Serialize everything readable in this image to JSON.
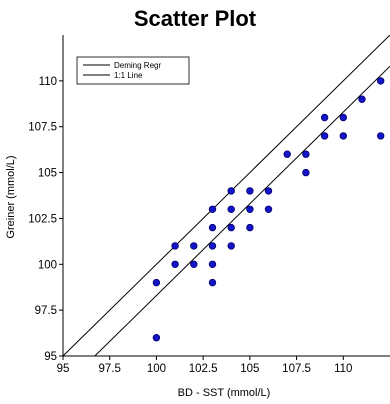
{
  "chart_data": {
    "type": "scatter",
    "title": "Scatter Plot",
    "xlabel": "BD - SST (mmol/L)",
    "ylabel": "Greiner (mmol/L)",
    "xlim": [
      95,
      112.5
    ],
    "ylim": [
      95,
      112.5
    ],
    "xticks": [
      "95",
      "97.5",
      "100",
      "102.5",
      "105",
      "107.5",
      "110"
    ],
    "yticks": [
      "95",
      "97.5",
      "100",
      "102.5",
      "105",
      "107.5",
      "110"
    ],
    "xtick_values": [
      95,
      97.5,
      100,
      102.5,
      105,
      107.5,
      110
    ],
    "ytick_values": [
      95,
      97.5,
      100,
      102.5,
      105,
      107.5,
      110
    ],
    "grid": false,
    "legend_position": "top-left",
    "legend": [
      {
        "label": "Deming Regr",
        "style": "line"
      },
      {
        "label": "1:1 Line",
        "style": "line"
      }
    ],
    "marker_color": "#1414c8",
    "marker_edge_color": "#00006e",
    "series": [
      {
        "points": [
          [
            100,
            96
          ],
          [
            100,
            99
          ],
          [
            101,
            100
          ],
          [
            101,
            101
          ],
          [
            102,
            100
          ],
          [
            102,
            101
          ],
          [
            103,
            99
          ],
          [
            103,
            100
          ],
          [
            103,
            101
          ],
          [
            103,
            102
          ],
          [
            103,
            103
          ],
          [
            104,
            101
          ],
          [
            104,
            102
          ],
          [
            104,
            103
          ],
          [
            104,
            104
          ],
          [
            105,
            102
          ],
          [
            105,
            103
          ],
          [
            105,
            104
          ],
          [
            106,
            103
          ],
          [
            106,
            104
          ],
          [
            107,
            106
          ],
          [
            108,
            105
          ],
          [
            108,
            106
          ],
          [
            109,
            107
          ],
          [
            109,
            108
          ],
          [
            110,
            107
          ],
          [
            110,
            108
          ],
          [
            111,
            109
          ],
          [
            112,
            107
          ],
          [
            112,
            110
          ]
        ]
      }
    ],
    "lines": [
      {
        "name": "1:1 Line",
        "x": [
          95,
          112.5
        ],
        "y": [
          95,
          112.5
        ]
      },
      {
        "name": "Deming Regr",
        "x": [
          96.7,
          112.5
        ],
        "y": [
          95,
          110.8
        ]
      }
    ]
  }
}
